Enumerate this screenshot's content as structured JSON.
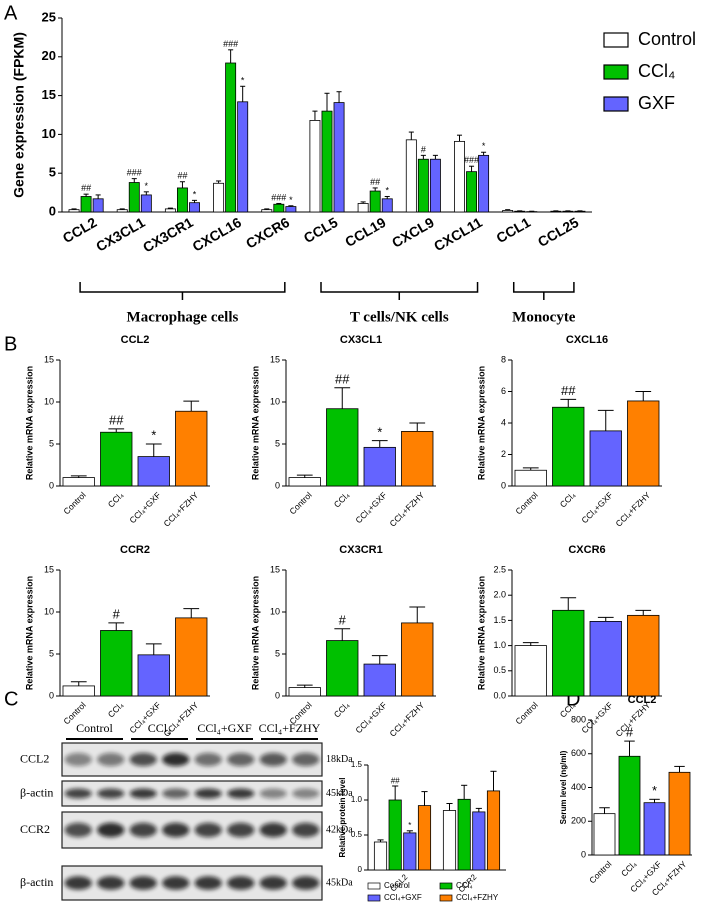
{
  "panels": [
    "A",
    "B",
    "C",
    "D"
  ],
  "blot": {
    "groups": [
      "Control",
      "CCl₄",
      "CCl₄+GXF",
      "CCl₄+FZHY"
    ],
    "rows": [
      {
        "protein": "CCL2",
        "size": "18kDa"
      },
      {
        "protein": "β-actin",
        "size": "45kDa"
      },
      {
        "protein": "CCR2",
        "size": "42kDa"
      },
      {
        "protein": "β-actin",
        "size": "45kDa"
      }
    ]
  },
  "chart_data": [
    {
      "type": "bar",
      "ylabel": "Gene expression (FPKM)",
      "ylim": [
        0,
        25
      ],
      "yticks": [
        0,
        5,
        10,
        15,
        20,
        25
      ],
      "legend": "top-right",
      "categories": [
        "CCL2",
        "CX3CL1",
        "CX3CR1",
        "CXCL16",
        "CXCR6",
        "CCL5",
        "CCL19",
        "CXCL9",
        "CXCL11",
        "CCL1",
        "CCL25"
      ],
      "series": [
        {
          "name": "Control",
          "color": "#ffffff",
          "values": [
            0.3,
            0.3,
            0.4,
            3.7,
            0.3,
            11.8,
            1.1,
            9.3,
            9.1,
            0.2,
            0.1
          ],
          "errors": [
            0.1,
            0.1,
            0.1,
            0.3,
            0.1,
            1.2,
            0.2,
            1.0,
            0.8,
            0.1,
            0.05
          ]
        },
        {
          "name": "CCl₄",
          "color": "#00c000",
          "values": [
            2.0,
            3.8,
            3.1,
            19.2,
            1.0,
            13.0,
            2.7,
            6.8,
            5.2,
            0.1,
            0.1
          ],
          "errors": [
            0.3,
            0.5,
            0.8,
            1.7,
            0.1,
            2.3,
            0.4,
            0.5,
            0.7,
            0.05,
            0.05
          ],
          "annotations": [
            "##",
            "###",
            "##",
            "###",
            "###",
            null,
            "##",
            "#",
            "###",
            null,
            null
          ]
        },
        {
          "name": "GXF",
          "color": "#6464ff",
          "values": [
            1.7,
            2.2,
            1.2,
            14.2,
            0.7,
            14.1,
            1.7,
            6.8,
            7.3,
            0.05,
            0.1
          ],
          "errors": [
            0.5,
            0.4,
            0.3,
            2.0,
            0.1,
            1.4,
            0.3,
            0.5,
            0.4,
            0.05,
            0.05
          ],
          "annotations": [
            null,
            "*",
            "*",
            "*",
            "*",
            null,
            "*",
            null,
            "*",
            null,
            null
          ]
        }
      ],
      "groups": [
        {
          "label": "Macrophage cells",
          "members": [
            "CCL2",
            "CX3CL1",
            "CX3CR1",
            "CXCL16",
            "CXCR6"
          ]
        },
        {
          "label": "T cells/NK cells",
          "members": [
            "CCL5",
            "CCL19",
            "CXCL9",
            "CXCL11"
          ]
        },
        {
          "label": "Monocyte",
          "members": [
            "CCL1",
            "CCL25"
          ]
        }
      ]
    },
    {
      "type": "bar",
      "title": "CCL2",
      "ylabel": "Relative mRNA expression",
      "ylim": [
        0,
        15
      ],
      "yticks": [
        0,
        5,
        10,
        15
      ],
      "categories": [
        "Control",
        "CCl₄",
        "CCl₄+GXF",
        "CCl₄+FZHY"
      ],
      "colors": [
        "#ffffff",
        "#00c000",
        "#6464ff",
        "#ff8000"
      ],
      "values": [
        1.0,
        6.4,
        3.5,
        8.9
      ],
      "errors": [
        0.2,
        0.4,
        1.5,
        1.2
      ],
      "annotations": [
        null,
        "##",
        "*",
        null
      ]
    },
    {
      "type": "bar",
      "title": "CX3CL1",
      "ylabel": "Relative mRNA expression",
      "ylim": [
        0,
        15
      ],
      "yticks": [
        0,
        5,
        10,
        15
      ],
      "categories": [
        "Control",
        "CCl₄",
        "CCl₄+GXF",
        "CCl₄+FZHY"
      ],
      "colors": [
        "#ffffff",
        "#00c000",
        "#6464ff",
        "#ff8000"
      ],
      "values": [
        1.0,
        9.2,
        4.6,
        6.5
      ],
      "errors": [
        0.3,
        2.5,
        0.8,
        1.0
      ],
      "annotations": [
        null,
        "##",
        "*",
        null
      ]
    },
    {
      "type": "bar",
      "title": "CXCL16",
      "ylabel": "Relative mRNA expression",
      "ylim": [
        0,
        8
      ],
      "yticks": [
        0,
        2,
        4,
        6,
        8
      ],
      "categories": [
        "Control",
        "CCl₄",
        "CCl₄+GXF",
        "CCl₄+FZHY"
      ],
      "colors": [
        "#ffffff",
        "#00c000",
        "#6464ff",
        "#ff8000"
      ],
      "values": [
        1.0,
        5.0,
        3.5,
        5.4
      ],
      "errors": [
        0.15,
        0.5,
        1.3,
        0.6
      ],
      "annotations": [
        null,
        "##",
        null,
        null
      ]
    },
    {
      "type": "bar",
      "title": "CCR2",
      "ylabel": "Relative mRNA expression",
      "ylim": [
        0,
        15
      ],
      "yticks": [
        0,
        5,
        10,
        15
      ],
      "categories": [
        "Control",
        "CCl₄",
        "CCl₄+GXF",
        "CCl₄+FZHY"
      ],
      "colors": [
        "#ffffff",
        "#00c000",
        "#6464ff",
        "#ff8000"
      ],
      "values": [
        1.2,
        7.8,
        4.9,
        9.3
      ],
      "errors": [
        0.5,
        0.9,
        1.3,
        1.1
      ],
      "annotations": [
        null,
        "#",
        null,
        null
      ]
    },
    {
      "type": "bar",
      "title": "CX3CR1",
      "ylabel": "Relative mRNA expression",
      "ylim": [
        0,
        15
      ],
      "yticks": [
        0,
        5,
        10,
        15
      ],
      "categories": [
        "Control",
        "CCl₄",
        "CCl₄+GXF",
        "CCl₄+FZHY"
      ],
      "colors": [
        "#ffffff",
        "#00c000",
        "#6464ff",
        "#ff8000"
      ],
      "values": [
        1.0,
        6.6,
        3.8,
        8.7
      ],
      "errors": [
        0.3,
        1.4,
        1.0,
        1.9
      ],
      "annotations": [
        null,
        "#",
        null,
        null
      ]
    },
    {
      "type": "bar",
      "title": "CXCR6",
      "ylabel": "Relative mRNA expression",
      "ylim": [
        0,
        2.5
      ],
      "yticks": [
        {
          "value": 0,
          "label": "0.0"
        },
        0.5,
        {
          "value": 1,
          "label": "1.0"
        },
        1.5,
        {
          "value": 2,
          "label": "2.0"
        },
        2.5
      ],
      "categories": [
        "Control",
        "CCl₄",
        "CCl₄+GXF",
        "CCl₄+FZHY"
      ],
      "colors": [
        "#ffffff",
        "#00c000",
        "#6464ff",
        "#ff8000"
      ],
      "values": [
        1.0,
        1.7,
        1.48,
        1.6
      ],
      "errors": [
        0.06,
        0.25,
        0.08,
        0.1
      ]
    },
    {
      "type": "bar",
      "ylabel": "Relative protein level",
      "ylim": [
        0,
        1.5
      ],
      "yticks": [
        0,
        0.5,
        {
          "value": 1,
          "label": "1.0"
        },
        1.5
      ],
      "legend": "bottom",
      "categories": [
        "CCL2",
        "CCR2"
      ],
      "series": [
        {
          "name": "Control",
          "color": "#ffffff",
          "values": [
            0.4,
            0.85
          ],
          "errors": [
            0.03,
            0.1
          ]
        },
        {
          "name": "CCl₄",
          "color": "#00c000",
          "values": [
            1.0,
            1.01
          ],
          "errors": [
            0.2,
            0.2
          ],
          "annotations": [
            "##",
            null
          ]
        },
        {
          "name": "CCl₄+GXF",
          "color": "#6464ff",
          "values": [
            0.53,
            0.83
          ],
          "errors": [
            0.03,
            0.05
          ],
          "annotations": [
            "*",
            null
          ]
        },
        {
          "name": "CCl₄+FZHY",
          "color": "#ff8000",
          "values": [
            0.92,
            1.13
          ],
          "errors": [
            0.2,
            0.28
          ]
        }
      ]
    },
    {
      "type": "bar",
      "title": "CCL2",
      "ylabel": "Serum level (ng/ml)",
      "ylim": [
        0,
        800
      ],
      "yticks": [
        0,
        200,
        400,
        600,
        800
      ],
      "categories": [
        "Control",
        "CCl₄",
        "CCl₄+GXF",
        "CCl₄+FZHY"
      ],
      "colors": [
        "#ffffff",
        "#00c000",
        "#6464ff",
        "#ff8000"
      ],
      "values": [
        245,
        585,
        310,
        490
      ],
      "errors": [
        35,
        90,
        20,
        35
      ],
      "annotations": [
        null,
        "#",
        "*",
        null
      ]
    }
  ]
}
